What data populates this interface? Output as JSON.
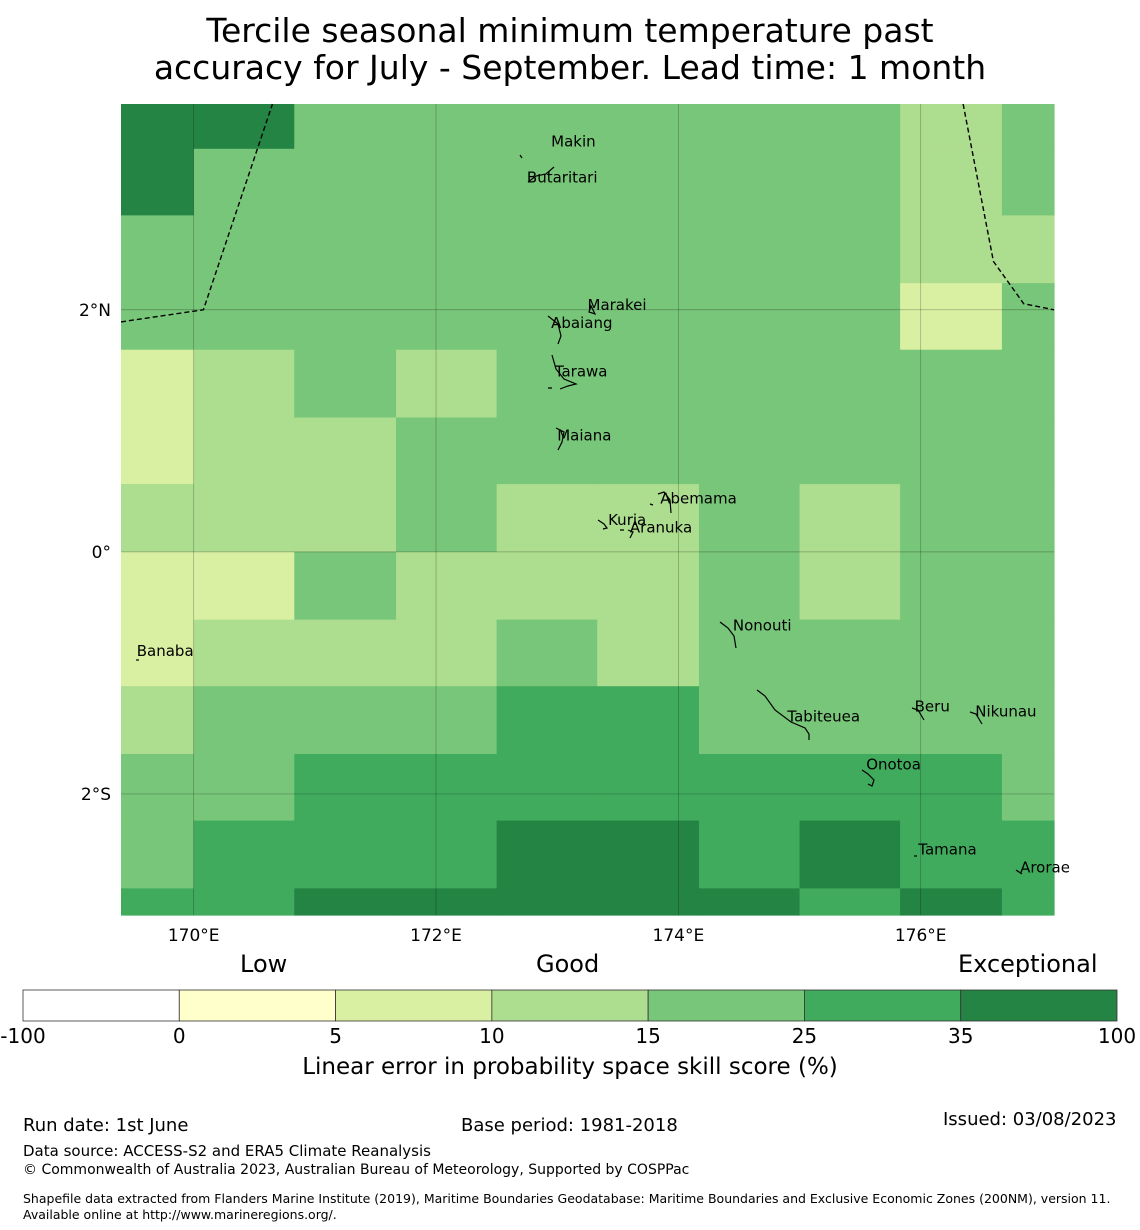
{
  "title": {
    "line1": "Tercile seasonal minimum temperature past",
    "line2": "accuracy for July - September. Lead time: 1 month"
  },
  "map": {
    "lat_labels": [
      "2°N",
      "0°",
      "2°S"
    ],
    "lon_labels": [
      "170°E",
      "172°E",
      "174°E",
      "176°E"
    ],
    "lat_values": [
      2,
      0,
      -2
    ],
    "lon_values": [
      170,
      172,
      174,
      176
    ],
    "lon_range": [
      169.4,
      177.1
    ],
    "lat_range": [
      -3.0,
      3.7
    ],
    "places": [
      {
        "name": "Makin",
        "lon": 172.95,
        "lat": 3.35
      },
      {
        "name": "Butaritari",
        "lon": 172.75,
        "lat": 3.05
      },
      {
        "name": "Marakei",
        "lon": 173.25,
        "lat": 2.0
      },
      {
        "name": "Abaiang",
        "lon": 172.95,
        "lat": 1.85
      },
      {
        "name": "Tarawa",
        "lon": 172.98,
        "lat": 1.45
      },
      {
        "name": "Maiana",
        "lon": 173.0,
        "lat": 0.92
      },
      {
        "name": "Abemama",
        "lon": 173.85,
        "lat": 0.4
      },
      {
        "name": "Kuria",
        "lon": 173.42,
        "lat": 0.22
      },
      {
        "name": "Aranuka",
        "lon": 173.6,
        "lat": 0.16
      },
      {
        "name": "Nonouti",
        "lon": 174.45,
        "lat": -0.65
      },
      {
        "name": "Banaba",
        "lon": 169.53,
        "lat": -0.86
      },
      {
        "name": "Tabiteuea",
        "lon": 174.9,
        "lat": -1.4
      },
      {
        "name": "Beru",
        "lon": 175.95,
        "lat": -1.32
      },
      {
        "name": "Nikunau",
        "lon": 176.45,
        "lat": -1.36
      },
      {
        "name": "Onotoa",
        "lon": 175.55,
        "lat": -1.8
      },
      {
        "name": "Tamana",
        "lon": 175.98,
        "lat": -2.5
      },
      {
        "name": "Arorae",
        "lon": 176.82,
        "lat": -2.65
      }
    ],
    "grid_x_edges": [
      169.4,
      170.0,
      170.83,
      171.67,
      172.5,
      173.33,
      174.17,
      175.0,
      175.83,
      176.67,
      177.1
    ],
    "grid_y_edges": [
      3.7,
      3.33,
      2.78,
      2.22,
      1.67,
      1.11,
      0.56,
      0.0,
      -0.56,
      -1.11,
      -1.67,
      -2.22,
      -2.78,
      -3.0
    ],
    "skill_grid": [
      [
        35,
        35,
        20,
        20,
        20,
        20,
        20,
        20,
        12,
        20
      ],
      [
        35,
        20,
        20,
        20,
        20,
        20,
        20,
        20,
        12,
        20
      ],
      [
        20,
        20,
        20,
        20,
        20,
        20,
        20,
        20,
        12,
        12
      ],
      [
        20,
        20,
        20,
        20,
        20,
        20,
        20,
        20,
        7,
        20
      ],
      [
        7,
        12,
        20,
        12,
        20,
        20,
        20,
        20,
        20,
        20
      ],
      [
        7,
        12,
        12,
        20,
        20,
        20,
        20,
        20,
        20,
        20
      ],
      [
        12,
        12,
        12,
        20,
        12,
        12,
        20,
        12,
        20,
        20
      ],
      [
        7,
        7,
        20,
        12,
        12,
        12,
        20,
        12,
        20,
        20
      ],
      [
        7,
        12,
        12,
        12,
        20,
        12,
        20,
        20,
        20,
        20
      ],
      [
        12,
        20,
        20,
        20,
        30,
        30,
        20,
        20,
        20,
        20
      ],
      [
        20,
        20,
        30,
        30,
        30,
        30,
        30,
        30,
        30,
        20
      ],
      [
        20,
        30,
        30,
        30,
        50,
        50,
        30,
        50,
        30,
        30
      ],
      [
        30,
        30,
        50,
        50,
        50,
        50,
        50,
        30,
        50,
        30
      ]
    ]
  },
  "legend": {
    "categories": [
      "Low",
      "Good",
      "Exceptional"
    ],
    "ticks": [
      "-100",
      "0",
      "5",
      "10",
      "15",
      "25",
      "35",
      "100"
    ],
    "colors": [
      "#ffffff",
      "#ffffcc",
      "#d9f0a3",
      "#addd8e",
      "#78c679",
      "#41ab5d",
      "#238443"
    ],
    "xlabel": "Linear error in probability space skill score (%)"
  },
  "footer": {
    "run_date": "Run date: 1st June",
    "base_period": "Base period: 1981-2018",
    "issued": "Issued: 03/08/2023",
    "data_source": "Data source: ACCESS-S2 and ERA5 Climate Reanalysis",
    "copyright": "© Commonwealth of Australia 2023, Australian Bureau of Meteorology, Supported by COSPPac",
    "shapefile": "Shapefile data extracted from Flanders Marine Institute (2019), Maritime Boundaries Geodatabase: Maritime Boundaries and Exclusive Economic Zones (200NM), version 11. Available online at http://www.marineregions.org/."
  }
}
